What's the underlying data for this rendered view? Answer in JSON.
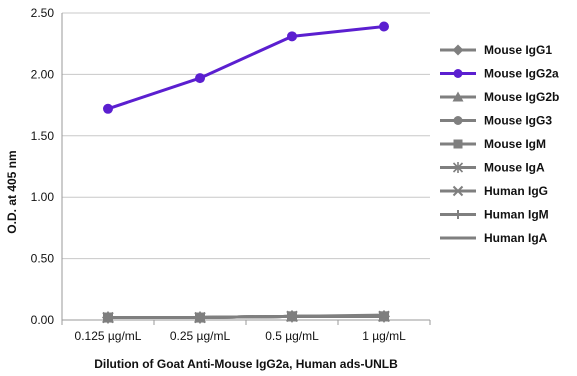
{
  "chart_data": {
    "type": "line",
    "categories": [
      "0.125 µg/mL",
      "0.25 µg/mL",
      "0.5 µg/mL",
      "1 µg/mL"
    ],
    "ylabel": "O.D. at 405 nm",
    "xlabel": "Dilution of Goat Anti-Mouse IgG2a, Human ads-UNLB",
    "ylim": [
      0,
      2.5
    ],
    "yticks": [
      "0.00",
      "0.50",
      "1.00",
      "1.50",
      "2.00",
      "2.50"
    ],
    "grid": true,
    "legend_position": "right",
    "series": [
      {
        "name": "Mouse IgG1",
        "values": [
          0.02,
          0.02,
          0.03,
          0.03
        ],
        "color": "#7f7f7f",
        "marker": "diamond"
      },
      {
        "name": "Mouse IgG2a",
        "values": [
          1.72,
          1.97,
          2.31,
          2.39
        ],
        "color": "#5b1fd0",
        "marker": "circle"
      },
      {
        "name": "Mouse IgG2b",
        "values": [
          0.02,
          0.02,
          0.03,
          0.03
        ],
        "color": "#7f7f7f",
        "marker": "triangle"
      },
      {
        "name": "Mouse IgG3",
        "values": [
          0.02,
          0.02,
          0.03,
          0.03
        ],
        "color": "#7f7f7f",
        "marker": "circle"
      },
      {
        "name": "Mouse IgM",
        "values": [
          0.02,
          0.02,
          0.03,
          0.03
        ],
        "color": "#7f7f7f",
        "marker": "square"
      },
      {
        "name": "Mouse IgA",
        "values": [
          0.02,
          0.02,
          0.03,
          0.03
        ],
        "color": "#7f7f7f",
        "marker": "star"
      },
      {
        "name": "Human IgG",
        "values": [
          0.02,
          0.02,
          0.03,
          0.03
        ],
        "color": "#7f7f7f",
        "marker": "x"
      },
      {
        "name": "Human IgM",
        "values": [
          0.02,
          0.02,
          0.03,
          0.03
        ],
        "color": "#7f7f7f",
        "marker": "plus"
      },
      {
        "name": "Human IgA",
        "values": [
          0.02,
          0.02,
          0.03,
          0.04
        ],
        "color": "#7f7f7f",
        "marker": "none"
      }
    ]
  }
}
